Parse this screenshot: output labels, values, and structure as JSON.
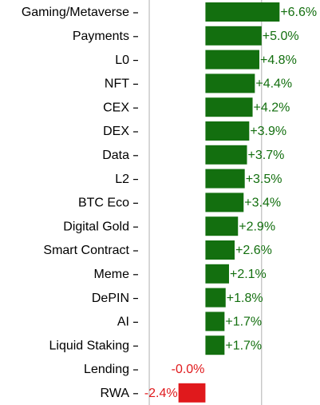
{
  "chart_data": {
    "type": "barh",
    "categories": [
      "Gaming/Metaverse",
      "Payments",
      "L0",
      "NFT",
      "CEX",
      "DEX",
      "Data",
      "L2",
      "BTC Eco",
      "Digital Gold",
      "Smart Contract",
      "Meme",
      "DePIN",
      "AI",
      "Liquid Staking",
      "Lending",
      "RWA"
    ],
    "values": [
      6.6,
      5.0,
      4.8,
      4.4,
      4.2,
      3.9,
      3.7,
      3.5,
      3.4,
      2.9,
      2.6,
      2.1,
      1.8,
      1.7,
      1.7,
      -0.0,
      -2.4
    ],
    "value_labels": [
      "+6.6%",
      "+5.0%",
      "+4.8%",
      "+4.4%",
      "+4.2%",
      "+3.9%",
      "+3.7%",
      "+3.5%",
      "+3.4%",
      "+2.9%",
      "+2.6%",
      "+2.1%",
      "+1.8%",
      "+1.7%",
      "+1.7%",
      "-0.0%",
      "-2.4%"
    ],
    "color": "#136f0f",
    "negative_color": "#e0191c",
    "xlim": [
      -5.5,
      10.2
    ],
    "xticks": [
      -5,
      5
    ],
    "grid": true
  }
}
